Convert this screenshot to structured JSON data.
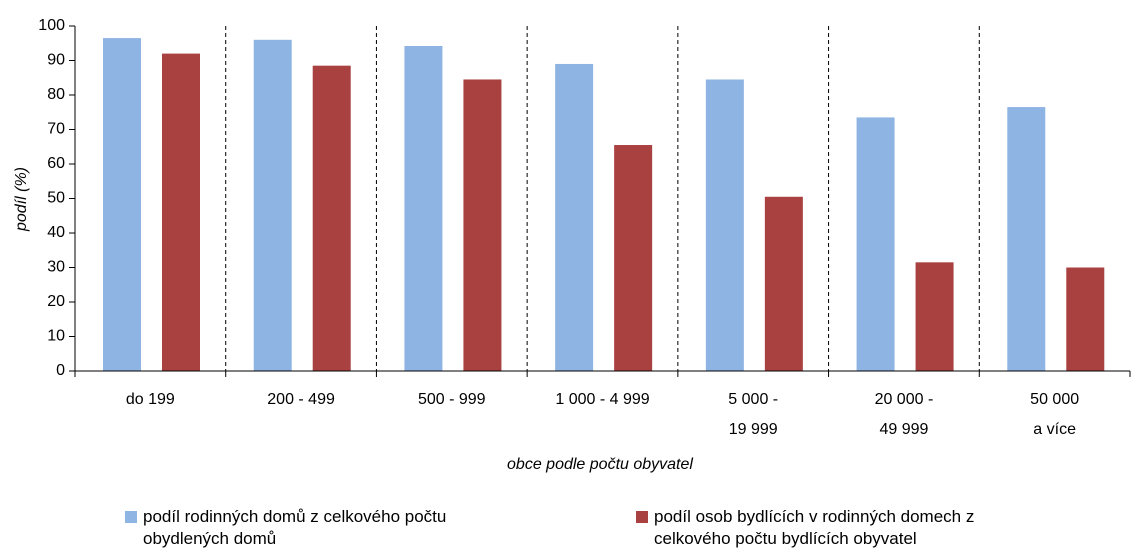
{
  "chart_data": {
    "type": "bar",
    "x_label": "obce podle počtu obyvatel",
    "y_label": "podíl (%)",
    "categories": [
      [
        "do 199"
      ],
      [
        "200 - 499"
      ],
      [
        "500 - 999"
      ],
      [
        "1 000 - 4 999"
      ],
      [
        "5 000 -",
        "19 999"
      ],
      [
        "20 000 -",
        "49 999"
      ],
      [
        "50 000",
        "a více"
      ]
    ],
    "series": [
      {
        "name": "podíl rodinných domů z celkového počtu obydlených domů",
        "color": "#8eb4e3",
        "values": [
          96.5,
          96,
          94.2,
          89,
          84.5,
          73.5,
          76.5
        ]
      },
      {
        "name": "podíl osob bydlících v rodinných domech z celkového počtu bydlících obyvatel",
        "color": "#a94140",
        "values": [
          92,
          88.5,
          84.5,
          65.5,
          50.5,
          31.5,
          30
        ]
      }
    ],
    "ylim": [
      0,
      100
    ],
    "yticks": [
      0,
      10,
      20,
      30,
      40,
      50,
      60,
      70,
      80,
      90,
      100
    ],
    "category_grid": true
  }
}
